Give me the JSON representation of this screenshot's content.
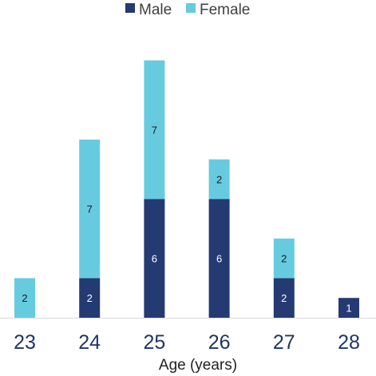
{
  "chart_data": {
    "type": "bar",
    "stacked": true,
    "title": "",
    "xlabel": "Age (years)",
    "ylabel": "",
    "categories": [
      "23",
      "24",
      "25",
      "26",
      "27",
      "28"
    ],
    "series": [
      {
        "name": "Male",
        "color": "#243a73",
        "values": [
          0,
          2,
          6,
          6,
          2,
          1
        ]
      },
      {
        "name": "Female",
        "color": "#67cbe0",
        "values": [
          2,
          7,
          7,
          2,
          2,
          0
        ]
      }
    ],
    "ylim": [
      0,
      13
    ],
    "grid": false,
    "legend_position": "top-center"
  }
}
